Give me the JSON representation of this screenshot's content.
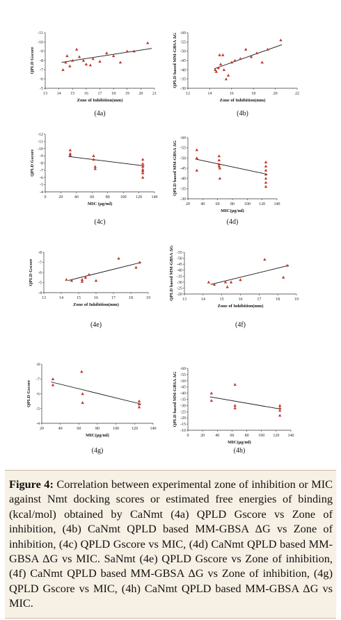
{
  "caption": {
    "label": "Figure 4:",
    "text": "Correlation between experimental zone of inhibition or MIC against Nmt docking scores or estimated free energies of binding (kcal/mol) obtained by CaNmt (4a) QPLD Gscore vs Zone of inhibition, (4b) CaNmt QPLD based MM-GBSA ΔG vs Zone of inhibition, (4c) QPLD Gscore vs MIC, (4d) CaNmt QPLD based MM-GBSA ΔG vs MIC. SaNmt (4e) QPLD Gscore vs Zone of inhibition, (4f) CaNmt QPLD based MM-GBSA ΔG vs Zone of inhibition, (4g) QPLD Gscore vs MIC, (4h) CaNmt QPLD based MM-GBSA ΔG vs MIC."
  },
  "colors": {
    "marker": "#c0392b",
    "trend": "#111111",
    "axis": "#333333"
  },
  "chart_data": [
    {
      "panel": "(4a)",
      "type": "scatter",
      "xlabel": "Zone of Inhibition(mm)",
      "ylabel": "QPLD Gscore",
      "xlim": [
        13,
        21
      ],
      "xticks": [
        13,
        14,
        15,
        16,
        17,
        18,
        19,
        20,
        21
      ],
      "ylim": [
        -5,
        -11
      ],
      "yticks": [
        -5,
        -6,
        -7,
        -8,
        -9,
        -10,
        -11
      ],
      "x": [
        14.3,
        14.5,
        14.6,
        14.8,
        15.0,
        15.3,
        15.5,
        15.8,
        16.0,
        16.3,
        16.5,
        17.0,
        17.5,
        18.0,
        18.5,
        19.0,
        19.5,
        20.5
      ],
      "y": [
        -7.0,
        -7.8,
        -8.5,
        -7.4,
        -8.0,
        -9.2,
        -8.4,
        -8.0,
        -7.6,
        -7.5,
        -8.2,
        -7.9,
        -8.8,
        -8.5,
        -7.8,
        -9.0,
        -9.0,
        -9.9
      ],
      "trend": [
        [
          14.2,
          -7.8
        ],
        [
          20.8,
          -9.3
        ]
      ]
    },
    {
      "panel": "(4b)",
      "type": "scatter",
      "xlabel": "Zone of Inhibition(mm)",
      "ylabel": "QPLD based MM-GBSA ΔG",
      "xlim": [
        12,
        22
      ],
      "xticks": [
        12,
        14,
        16,
        18,
        20,
        22
      ],
      "ylim": [
        -30,
        -60
      ],
      "yticks": [
        -30,
        -35,
        -40,
        -45,
        -50,
        -55,
        -60
      ],
      "x": [
        14.5,
        14.6,
        14.8,
        14.9,
        15.0,
        15.2,
        15.3,
        15.5,
        15.7,
        16.0,
        16.3,
        16.8,
        17.3,
        17.8,
        18.3,
        18.8,
        19.3,
        20.5
      ],
      "y": [
        -40.0,
        -39.0,
        -41.0,
        -48.0,
        -43.0,
        -48.0,
        -40.0,
        -35.0,
        -37.0,
        -44.0,
        -45.0,
        -46.0,
        -51.0,
        -47.0,
        -49.0,
        -44.0,
        -51.0,
        -56.0
      ],
      "trend": [
        [
          14.4,
          -40.5
        ],
        [
          20.6,
          -53.5
        ]
      ]
    },
    {
      "panel": "(4c)",
      "type": "scatter",
      "xlabel": "MIC (µg/ml)",
      "ylabel": "QPLD Gscore",
      "xlim": [
        0,
        140
      ],
      "xticks": [
        0,
        20,
        40,
        60,
        80,
        100,
        120,
        140
      ],
      "ylim": [
        -4,
        -12
      ],
      "yticks": [
        -4,
        -5,
        -6,
        -7,
        -8,
        -9,
        -10,
        -11,
        -12
      ],
      "x": [
        32,
        32,
        32,
        62,
        62,
        64,
        64,
        125,
        125,
        125,
        125,
        125,
        125,
        125
      ],
      "y": [
        -9.8,
        -9.3,
        -9.1,
        -9.0,
        -8.5,
        -7.5,
        -7.2,
        -8.5,
        -7.9,
        -7.5,
        -7.1,
        -6.9,
        -6.6,
        -6.0
      ],
      "trend": [
        [
          30,
          -8.9
        ],
        [
          127,
          -7.6
        ]
      ]
    },
    {
      "panel": "(4d)",
      "type": "scatter",
      "xlabel": "MIC(µg/ml)",
      "ylabel": "QPLD based MM-GBSA ΔG",
      "xlim": [
        20,
        140
      ],
      "xticks": [
        20,
        40,
        60,
        80,
        100,
        120,
        140
      ],
      "ylim": [
        -30,
        -60
      ],
      "yticks": [
        -30,
        -35,
        -40,
        -45,
        -50,
        -55,
        -60
      ],
      "x": [
        32,
        32,
        32,
        62,
        62,
        62,
        62,
        63,
        63,
        125,
        125,
        125,
        125,
        125,
        125,
        125
      ],
      "y": [
        -54,
        -50,
        -44,
        -51,
        -49,
        -47,
        -46,
        -45,
        -40,
        -48,
        -46,
        -44,
        -42,
        -40,
        -38,
        -36
      ],
      "trend": [
        [
          30,
          -49.5
        ],
        [
          127,
          -42.0
        ]
      ]
    },
    {
      "panel": "(4e)",
      "type": "scatter",
      "xlabel": "Zone of Inhibition(mm)",
      "ylabel": "QPLD Gscore",
      "xlim": [
        13,
        19
      ],
      "xticks": [
        13,
        14,
        15,
        16,
        17,
        18,
        19
      ],
      "ylim": [
        -4,
        -8
      ],
      "yticks": [
        -4,
        -5,
        -6,
        -7,
        -8
      ],
      "x": [
        14.3,
        14.6,
        15.2,
        15.2,
        15.4,
        15.6,
        16.0,
        17.3,
        18.3,
        18.5
      ],
      "y": [
        -5.3,
        -5.2,
        -5.3,
        -5.1,
        -5.5,
        -5.8,
        -5.2,
        -7.4,
        -6.5,
        -7.0
      ],
      "trend": [
        [
          14.4,
          -5.2
        ],
        [
          18.6,
          -7.0
        ]
      ]
    },
    {
      "panel": "(4f)",
      "type": "scatter",
      "xlabel": "Zone of Inhibition(mm)",
      "ylabel": "QPLD based MM-GBSA ΔG",
      "xlim": [
        13,
        19
      ],
      "xticks": [
        13,
        14,
        15,
        16,
        17,
        18,
        19
      ],
      "ylim": [
        -20,
        -55
      ],
      "yticks": [
        -20,
        -25,
        -30,
        -35,
        -40,
        -45,
        -50,
        -55
      ],
      "x": [
        14.3,
        14.6,
        15.2,
        15.3,
        15.5,
        16.0,
        17.3,
        18.3,
        18.5
      ],
      "y": [
        -30.0,
        -28.0,
        -30.0,
        -26.0,
        -30.0,
        -32.0,
        -49.0,
        -34.0,
        -44.0
      ],
      "trend": [
        [
          14.4,
          -28.0
        ],
        [
          18.6,
          -44.0
        ]
      ]
    },
    {
      "panel": "(4g)",
      "type": "scatter",
      "xlabel": "MIC(µg/ml)",
      "ylabel": "QPLD Gscore",
      "xlim": [
        20,
        140
      ],
      "xticks": [
        20,
        40,
        60,
        80,
        100,
        120,
        140
      ],
      "ylim": [
        -4,
        -8
      ],
      "yticks": [
        -4,
        -5,
        -6,
        -7,
        -8
      ],
      "x": [
        32,
        32,
        63,
        64,
        64,
        125,
        125,
        125
      ],
      "y": [
        -7.0,
        -6.6,
        -7.5,
        -6.0,
        -5.4,
        -5.5,
        -5.3,
        -5.1
      ],
      "trend": [
        [
          30,
          -6.8
        ],
        [
          127,
          -5.3
        ]
      ]
    },
    {
      "panel": "(4h)",
      "type": "scatter",
      "xlabel": "MIC(µg/ml)",
      "ylabel": "QPLD based MM-GBSA ΔG",
      "xlim": [
        0,
        140
      ],
      "xticks": [
        0,
        20,
        40,
        60,
        80,
        100,
        120,
        140
      ],
      "ylim": [
        -10,
        -60
      ],
      "yticks": [
        -10,
        -15,
        -20,
        -25,
        -30,
        -35,
        -40,
        -45,
        -50,
        -55,
        -60
      ],
      "x": [
        32,
        32,
        64,
        64,
        64,
        125,
        125,
        125,
        125
      ],
      "y": [
        -40,
        -34,
        -47,
        -30,
        -28,
        -30,
        -28,
        -26,
        -22
      ],
      "trend": [
        [
          30,
          -37
        ],
        [
          127,
          -27
        ]
      ]
    }
  ]
}
